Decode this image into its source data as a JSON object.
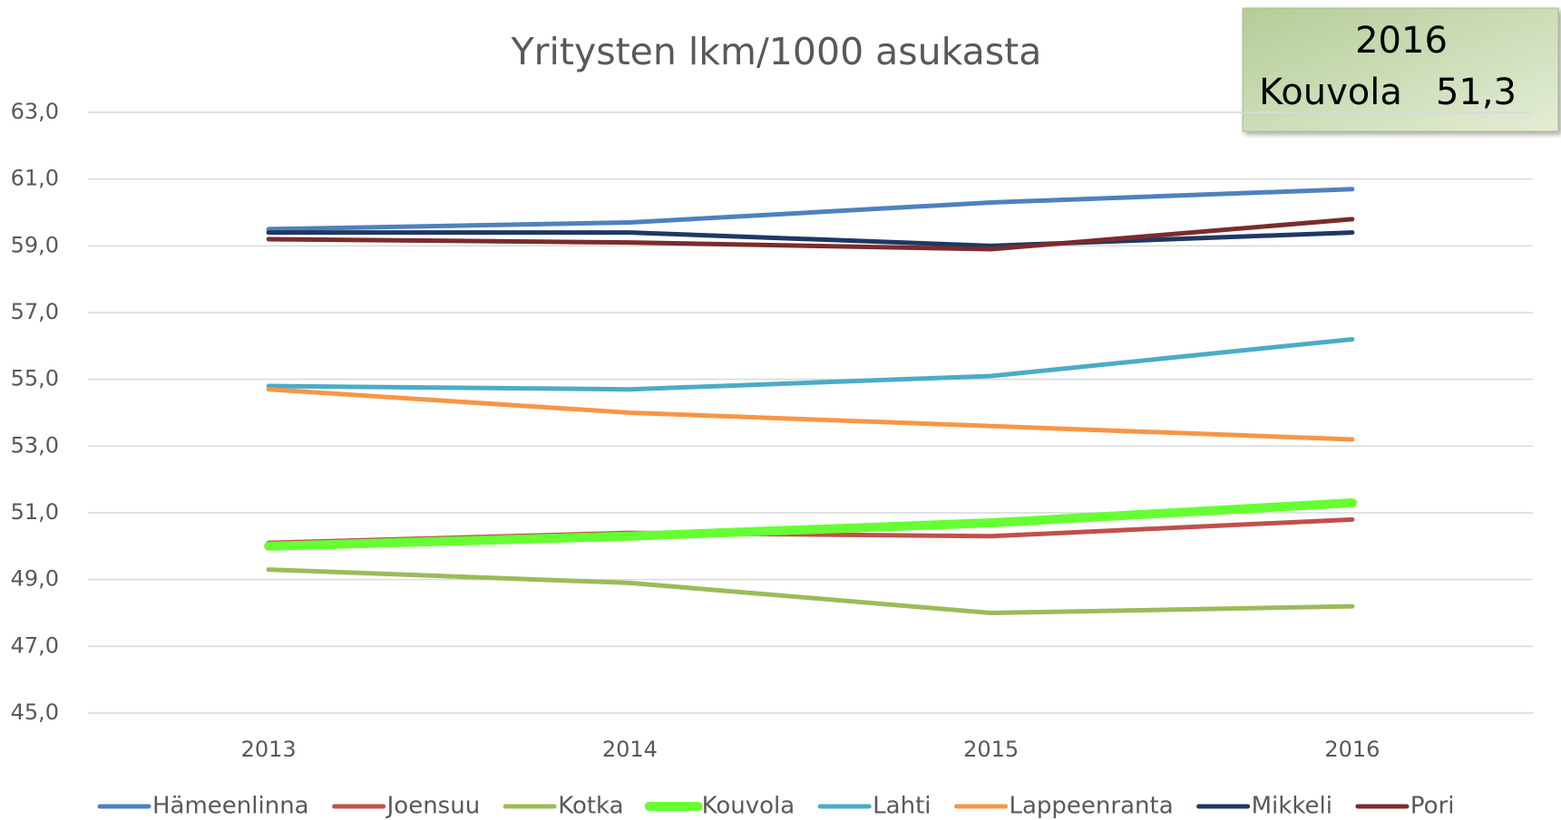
{
  "chart_data": {
    "type": "line",
    "title": "Yritysten lkm/1000 asukasta",
    "categories": [
      "2013",
      "2014",
      "2015",
      "2016"
    ],
    "series": [
      {
        "name": "Hämeenlinna",
        "color": "#4f81bd",
        "width": 5,
        "values": [
          59.5,
          59.7,
          60.3,
          60.7
        ]
      },
      {
        "name": "Joensuu",
        "color": "#c0504d",
        "width": 5,
        "values": [
          50.1,
          50.4,
          50.3,
          50.8
        ]
      },
      {
        "name": "Kotka",
        "color": "#9bbb59",
        "width": 5,
        "values": [
          49.3,
          48.9,
          48.0,
          48.2
        ]
      },
      {
        "name": "Kouvola",
        "color": "#66ff33",
        "width": 10,
        "values": [
          50.0,
          50.3,
          50.7,
          51.3
        ]
      },
      {
        "name": "Lahti",
        "color": "#4bacc6",
        "width": 5,
        "values": [
          54.8,
          54.7,
          55.1,
          56.2
        ]
      },
      {
        "name": "Lappeenranta",
        "color": "#f79646",
        "width": 5,
        "values": [
          54.7,
          54.0,
          53.6,
          53.2
        ]
      },
      {
        "name": "Mikkeli",
        "color": "#1f3864",
        "width": 5,
        "values": [
          59.4,
          59.4,
          59.0,
          59.4
        ]
      },
      {
        "name": "Pori",
        "color": "#7b2c2c",
        "width": 5,
        "values": [
          59.2,
          59.1,
          58.9,
          59.8
        ]
      }
    ],
    "ylim": [
      45,
      63
    ],
    "yticks": [
      {
        "value": 45,
        "label": "45,0"
      },
      {
        "value": 47,
        "label": "47,0"
      },
      {
        "value": 49,
        "label": "49,0"
      },
      {
        "value": 51,
        "label": "51,0"
      },
      {
        "value": 53,
        "label": "53,0"
      },
      {
        "value": 55,
        "label": "55,0"
      },
      {
        "value": 57,
        "label": "57,0"
      },
      {
        "value": 59,
        "label": "59,0"
      },
      {
        "value": 61,
        "label": "61,0"
      },
      {
        "value": 63,
        "label": "63,0"
      }
    ],
    "grid": true,
    "legend": "bottom",
    "annotation": {
      "year": "2016",
      "city": "Kouvola",
      "value": "51,3"
    }
  }
}
